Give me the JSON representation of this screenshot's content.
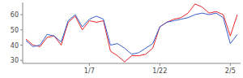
{
  "chart_data": {
    "type": "line",
    "categories": [
      null,
      null,
      null,
      null,
      null,
      null,
      null,
      null,
      null,
      "1/7",
      null,
      null,
      null,
      null,
      null,
      null,
      null,
      null,
      null,
      "1/22",
      null,
      null,
      null,
      null,
      null,
      null,
      null,
      null,
      null,
      "2/5",
      null
    ],
    "series": [
      {
        "color": "#e8262b",
        "values": [
          44,
          40,
          39,
          45,
          46,
          40,
          55,
          59,
          50,
          56,
          55,
          56,
          36,
          33,
          29,
          33,
          33,
          34,
          38,
          52,
          55,
          57,
          58,
          61,
          67,
          65,
          61,
          62,
          60,
          46,
          60
        ]
      },
      {
        "color": "#3a5fcd",
        "values": [
          43,
          39,
          40,
          47,
          46,
          42,
          56,
          60,
          52,
          57,
          59,
          57,
          40,
          41,
          38,
          34,
          35,
          38,
          41,
          52,
          55,
          56,
          57,
          58,
          60,
          61,
          60,
          61,
          58,
          41,
          47
        ]
      }
    ],
    "ylim": [
      28,
      68
    ],
    "yticks": [
      30,
      40,
      50,
      60
    ],
    "grid": false
  }
}
